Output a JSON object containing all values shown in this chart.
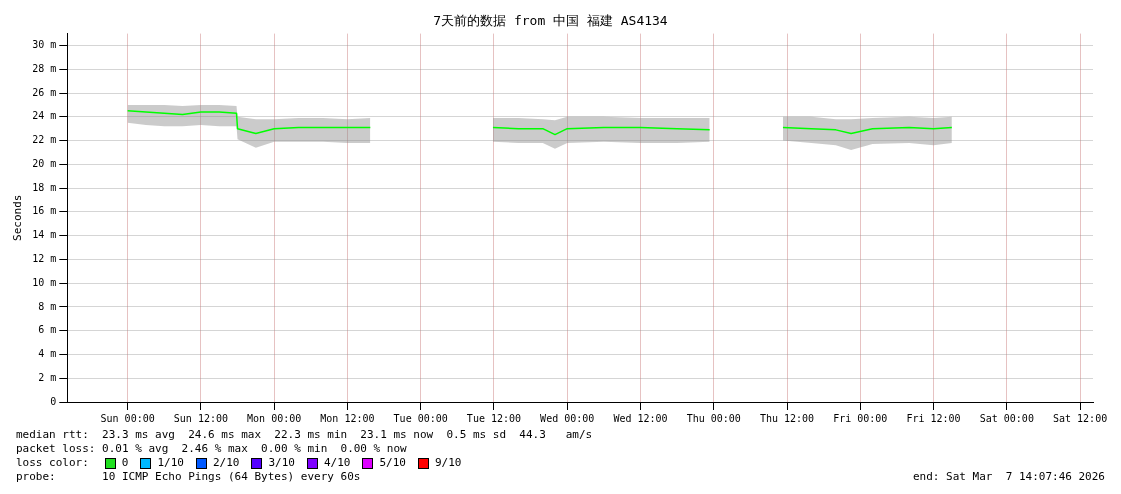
{
  "chart_data": {
    "type": "line",
    "title": "7天前的数据 from 中国 福建 AS4134",
    "ylabel": "Seconds",
    "xlim": [
      "2026-02-28T14:07",
      "2026-03-07T14:07"
    ],
    "xticks": [
      {
        "value": "2026-03-01T00:00",
        "label": "Sun 00:00"
      },
      {
        "value": "2026-03-01T12:00",
        "label": "Sun 12:00"
      },
      {
        "value": "2026-03-02T00:00",
        "label": "Mon 00:00"
      },
      {
        "value": "2026-03-02T12:00",
        "label": "Mon 12:00"
      },
      {
        "value": "2026-03-03T00:00",
        "label": "Tue 00:00"
      },
      {
        "value": "2026-03-03T12:00",
        "label": "Tue 12:00"
      },
      {
        "value": "2026-03-04T00:00",
        "label": "Wed 00:00"
      },
      {
        "value": "2026-03-04T12:00",
        "label": "Wed 12:00"
      },
      {
        "value": "2026-03-05T00:00",
        "label": "Thu 00:00"
      },
      {
        "value": "2026-03-05T12:00",
        "label": "Thu 12:00"
      },
      {
        "value": "2026-03-06T00:00",
        "label": "Fri 00:00"
      },
      {
        "value": "2026-03-06T12:00",
        "label": "Fri 12:00"
      },
      {
        "value": "2026-03-07T00:00",
        "label": "Sat 00:00"
      },
      {
        "value": "2026-03-07T12:00",
        "label": "Sat 12:00"
      }
    ],
    "ylim": [
      0,
      31
    ],
    "yticks": [
      0,
      {
        "value": 2,
        "label": "2 m"
      },
      {
        "value": 4,
        "label": "4 m"
      },
      {
        "value": 6,
        "label": "6 m"
      },
      {
        "value": 8,
        "label": "8 m"
      },
      {
        "value": 10,
        "label": "10 m"
      },
      {
        "value": 12,
        "label": "12 m"
      },
      {
        "value": 14,
        "label": "14 m"
      },
      {
        "value": 16,
        "label": "16 m"
      },
      {
        "value": 18,
        "label": "18 m"
      },
      {
        "value": 20,
        "label": "20 m"
      },
      {
        "value": 22,
        "label": "22 m"
      },
      {
        "value": 24,
        "label": "24 m"
      },
      {
        "value": 26,
        "label": "26 m"
      },
      {
        "value": 28,
        "label": "28 m"
      },
      {
        "value": 30,
        "label": "30 m"
      }
    ],
    "grid": true,
    "legend": false,
    "marker": "none",
    "line_style": "solid",
    "series": [
      {
        "color": "#00ff00",
        "x": [
          "2026-03-01T00:00",
          "2026-03-01T03:00",
          "2026-03-01T06:00",
          "2026-03-01T09:00",
          "2026-03-01T12:00",
          "2026-03-01T15:00",
          "2026-03-01T17:50",
          "2026-03-01T18:00",
          "2026-03-01T21:00",
          "2026-03-02T00:00",
          "2026-03-02T04:00",
          "2026-03-02T08:00",
          "2026-03-02T12:00",
          "2026-03-02T15:45",
          "2026-03-03T00:00",
          "2026-03-03T11:50",
          "2026-03-03T16:00",
          "2026-03-03T20:00",
          "2026-03-03T22:00",
          "2026-03-04T00:00",
          "2026-03-04T06:00",
          "2026-03-04T12:00",
          "2026-03-04T18:00",
          "2026-03-04T23:20",
          "2026-03-05T00:00",
          "2026-03-05T11:20",
          "2026-03-05T16:00",
          "2026-03-05T20:00",
          "2026-03-05T22:30",
          "2026-03-06T02:00",
          "2026-03-06T08:00",
          "2026-03-06T12:00",
          "2026-03-06T15:00"
        ],
        "values": [
          24.5,
          24.4,
          24.3,
          24.2,
          24.4,
          24.4,
          24.3,
          23.0,
          22.6,
          23.0,
          23.1,
          23.1,
          23.1,
          23.1,
          null,
          23.1,
          23.0,
          23.0,
          22.5,
          23.0,
          23.1,
          23.1,
          23.0,
          22.9,
          null,
          23.1,
          23.0,
          22.9,
          22.6,
          23.0,
          23.1,
          23.0,
          23.1
        ],
        "lower": [
          23.5,
          23.3,
          23.2,
          23.2,
          23.3,
          23.2,
          23.2,
          22.1,
          21.4,
          21.9,
          21.9,
          21.9,
          21.8,
          21.8,
          null,
          21.9,
          21.8,
          21.8,
          21.3,
          21.8,
          21.9,
          21.8,
          21.8,
          21.9,
          null,
          22.0,
          21.8,
          21.6,
          21.2,
          21.7,
          21.8,
          21.6,
          21.8
        ],
        "upper": [
          25.0,
          25.0,
          25.0,
          24.9,
          25.0,
          25.0,
          24.9,
          24.0,
          23.8,
          23.8,
          23.9,
          23.9,
          23.8,
          23.9,
          null,
          23.9,
          23.9,
          23.8,
          23.7,
          24.0,
          24.0,
          23.9,
          23.9,
          23.9,
          null,
          24.0,
          24.0,
          23.8,
          23.8,
          23.9,
          24.0,
          23.9,
          24.0
        ]
      }
    ],
    "annotations": [
      "median rtt:  23.3 ms avg  24.6 ms max  22.3 ms min  23.1 ms now  0.5 ms sd  44.3   am/s",
      "packet loss: 0.01 % avg  2.46 % max  0.00 % min  0.00 % now",
      "loss color:",
      "0",
      "1/10",
      "2/10",
      "3/10",
      "4/10",
      "5/10",
      "9/10",
      "probe:       10 ICMP Echo Pings (64 Bytes) every 60s",
      "end: Sat Mar  7 14:07:46 2026"
    ]
  }
}
